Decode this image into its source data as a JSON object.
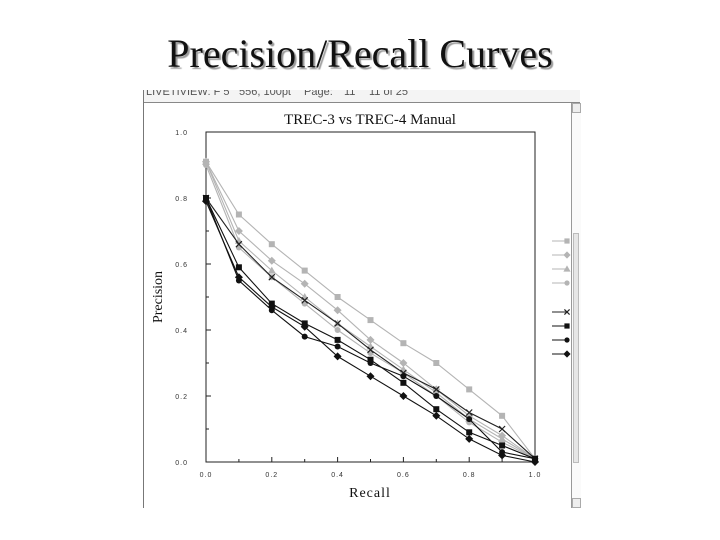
{
  "slide": {
    "title": "Precision/Recall Curves"
  },
  "header_strip": {
    "left": "LIVETIVIEW: F 5",
    "mid": "556, 100pt",
    "page_label": "Page:",
    "page": "11",
    "page_of": "11 of 25"
  },
  "chart_data": {
    "type": "line",
    "title": "TREC-3 vs TREC-4 Manual",
    "xlabel": "Recall",
    "ylabel": "Precision",
    "xlim": [
      0,
      1
    ],
    "ylim": [
      0,
      1
    ],
    "x_tick_labels": [
      "0.0",
      "0.2",
      "0.4",
      "0.6",
      "0.8",
      "1.0"
    ],
    "y_tick_labels": [
      "0.0",
      "0.2",
      "0.4",
      "0.6",
      "0.8",
      "1.0"
    ],
    "grid": false,
    "legend": "right, unlabeled markers",
    "x": [
      0,
      0.1,
      0.2,
      0.3,
      0.4,
      0.5,
      0.6,
      0.7,
      0.8,
      0.9,
      1.0
    ],
    "series": [
      {
        "marker": "square",
        "color": "#b4b4b4",
        "values": [
          0.91,
          0.75,
          0.66,
          0.58,
          0.5,
          0.43,
          0.36,
          0.3,
          0.22,
          0.14,
          0.01
        ]
      },
      {
        "marker": "diamond",
        "color": "#b4b4b4",
        "values": [
          0.91,
          0.7,
          0.61,
          0.54,
          0.46,
          0.37,
          0.3,
          0.22,
          0.14,
          0.08,
          0.01
        ]
      },
      {
        "marker": "triangle",
        "color": "#b4b4b4",
        "values": [
          0.91,
          0.67,
          0.58,
          0.5,
          0.42,
          0.35,
          0.28,
          0.21,
          0.13,
          0.07,
          0.01
        ]
      },
      {
        "marker": "circle",
        "color": "#b4b4b4",
        "values": [
          0.9,
          0.65,
          0.56,
          0.48,
          0.4,
          0.33,
          0.27,
          0.2,
          0.12,
          0.06,
          0.01
        ]
      },
      {
        "marker": "x",
        "color": "#222222",
        "values": [
          0.8,
          0.66,
          0.56,
          0.49,
          0.42,
          0.34,
          0.27,
          0.22,
          0.15,
          0.1,
          0.01
        ]
      },
      {
        "marker": "square",
        "color": "#111111",
        "values": [
          0.8,
          0.59,
          0.48,
          0.42,
          0.37,
          0.31,
          0.24,
          0.16,
          0.09,
          0.05,
          0.01
        ]
      },
      {
        "marker": "circle",
        "color": "#111111",
        "values": [
          0.8,
          0.55,
          0.46,
          0.38,
          0.35,
          0.3,
          0.26,
          0.2,
          0.13,
          0.03,
          0.01
        ]
      },
      {
        "marker": "diamond",
        "color": "#111111",
        "values": [
          0.79,
          0.56,
          0.47,
          0.41,
          0.32,
          0.26,
          0.2,
          0.14,
          0.07,
          0.02,
          0.0
        ]
      }
    ]
  }
}
